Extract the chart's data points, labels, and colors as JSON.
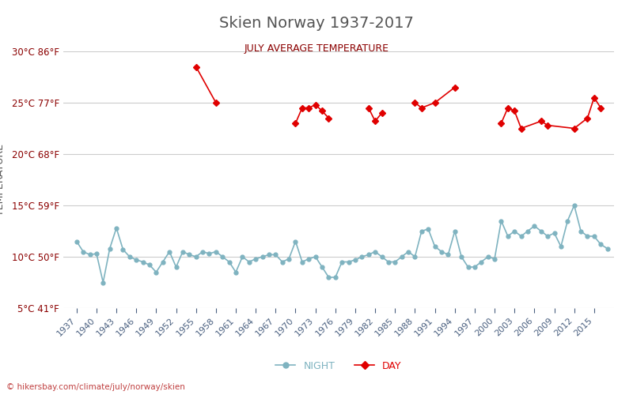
{
  "title": "Skien Norway 1937-2017",
  "subtitle": "JULY AVERAGE TEMPERATURE",
  "ylabel": "TEMPERATURE",
  "xlabel_url": "hikersbay.com/climate/july/norway/skien",
  "ylim": [
    5,
    30
  ],
  "yticks_c": [
    5,
    10,
    15,
    20,
    25,
    30
  ],
  "yticks_labels": [
    "5°C 41°F",
    "10°C 50°F",
    "15°C 59°F",
    "20°C 68°F",
    "25°C 77°F",
    "30°C 86°F"
  ],
  "night_color": "#7fb3c0",
  "day_color": "#e00000",
  "bg_color": "#ffffff",
  "grid_color": "#cccccc",
  "title_color": "#555555",
  "subtitle_color": "#8b0000",
  "ylabel_color": "#555555",
  "ytick_color": "#8b0000",
  "xtick_color": "#4a6080",
  "night_years": [
    1937,
    1938,
    1939,
    1940,
    1941,
    1942,
    1943,
    1944,
    1945,
    1946,
    1947,
    1948,
    1949,
    1950,
    1951,
    1952,
    1953,
    1954,
    1955,
    1956,
    1957,
    1958,
    1959,
    1960,
    1961,
    1962,
    1963,
    1964,
    1965,
    1966,
    1967,
    1968,
    1969,
    1970,
    1971,
    1972,
    1973,
    1974,
    1975,
    1976,
    1977,
    1978,
    1979,
    1980,
    1981,
    1982,
    1983,
    1984,
    1985,
    1986,
    1987,
    1988,
    1989,
    1990,
    1991,
    1992,
    1993,
    1994,
    1995,
    1996,
    1997,
    1998,
    1999,
    2000,
    2001,
    2002,
    2003,
    2004,
    2005,
    2006,
    2007,
    2008,
    2009,
    2010,
    2011,
    2012,
    2013,
    2014,
    2015,
    2016,
    2017
  ],
  "night_values": [
    11.5,
    10.5,
    10.2,
    10.3,
    7.5,
    10.8,
    12.8,
    10.7,
    10.0,
    9.7,
    9.5,
    9.2,
    8.5,
    9.5,
    10.5,
    9.0,
    10.5,
    10.2,
    10.0,
    10.5,
    10.3,
    10.5,
    10.0,
    9.5,
    8.5,
    10.0,
    9.5,
    9.8,
    10.0,
    10.2,
    10.2,
    9.5,
    9.8,
    11.5,
    9.5,
    9.8,
    10.0,
    9.0,
    8.0,
    8.0,
    9.5,
    9.5,
    9.7,
    10.0,
    10.2,
    10.5,
    10.0,
    9.5,
    9.5,
    10.0,
    10.5,
    10.0,
    12.5,
    12.7,
    11.0,
    10.5,
    10.2,
    12.5,
    10.0,
    9.0,
    9.0,
    9.5,
    10.0,
    9.8,
    13.5,
    12.0,
    12.5,
    12.0,
    12.5,
    13.0,
    12.5,
    12.0,
    12.3,
    11.0,
    13.5,
    15.0,
    12.5,
    12.0,
    12.0,
    11.2,
    10.8
  ],
  "day_years": [
    1955,
    1958,
    1970,
    1971,
    1972,
    1973,
    1974,
    1975,
    1981,
    1982,
    1983,
    1988,
    1989,
    1991,
    1994,
    2001,
    2002,
    2003,
    2004,
    2007,
    2008,
    2012,
    2014,
    2015,
    2016
  ],
  "day_values": [
    28.5,
    25.0,
    23.0,
    24.5,
    24.5,
    24.8,
    24.2,
    23.5,
    24.5,
    23.2,
    24.0,
    25.0,
    24.5,
    25.0,
    26.5,
    23.0,
    24.5,
    24.2,
    22.5,
    23.2,
    22.8,
    22.5,
    23.5,
    25.5,
    24.5
  ]
}
